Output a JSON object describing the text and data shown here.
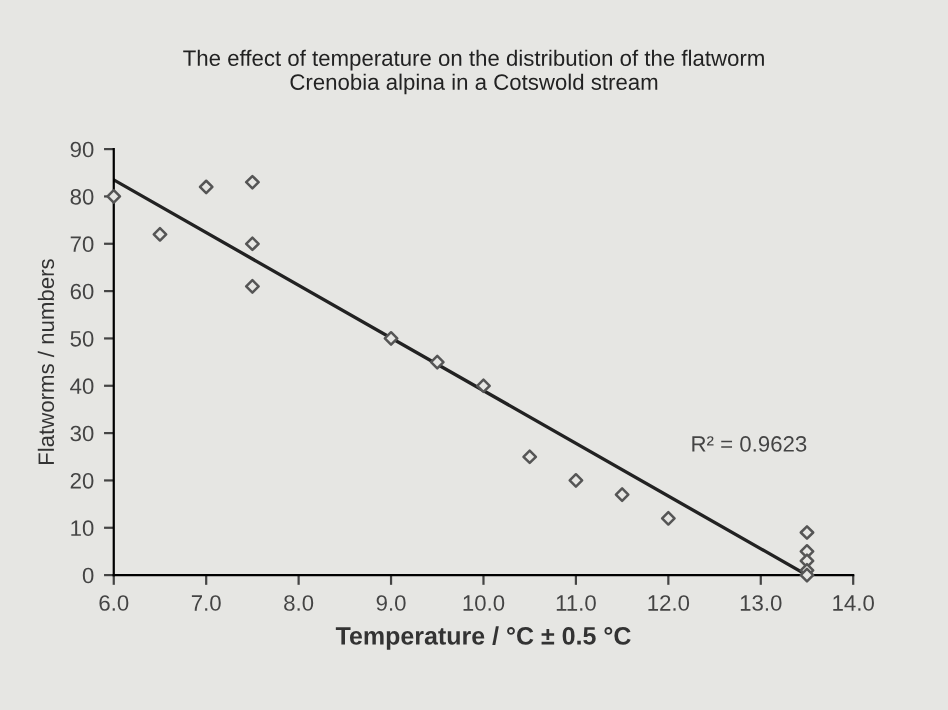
{
  "chart_data": {
    "type": "scatter",
    "title": "The effect of temperature on the distribution of the flatworm\nCrenobia alpina in a Cotswold stream",
    "xlabel": "Temperature / °C ± 0.5 °C",
    "ylabel": "Flatworms / numbers",
    "xlim": [
      6.0,
      14.0
    ],
    "xticks": [
      {
        "value": 6,
        "label": "6.0"
      },
      {
        "value": 7,
        "label": "7.0"
      },
      {
        "value": 8,
        "label": "8.0"
      },
      {
        "value": 9,
        "label": "9.0"
      },
      {
        "value": 10,
        "label": "10.0"
      },
      {
        "value": 11,
        "label": "11.0"
      },
      {
        "value": 12,
        "label": "12.0"
      },
      {
        "value": 13,
        "label": "13.0"
      },
      {
        "value": 14,
        "label": "14.0"
      }
    ],
    "ylim": [
      0,
      90
    ],
    "yticks": [
      0,
      10,
      20,
      30,
      40,
      50,
      60,
      70,
      80,
      90
    ],
    "grid": false,
    "legend": false,
    "series": [
      {
        "color": "#555555",
        "marker": "diamond",
        "x": [
          6.0,
          6.5,
          7.0,
          7.5,
          7.5,
          7.5,
          9.0,
          9.5,
          10.0,
          10.5,
          11.0,
          11.5,
          12.0,
          13.5,
          13.5,
          13.5,
          13.5,
          13.5
        ],
        "values": [
          80,
          72,
          82,
          83,
          70,
          61,
          50,
          45,
          40,
          25,
          20,
          17,
          12,
          9,
          5,
          3,
          1,
          0
        ]
      },
      {
        "type": "line",
        "color": "#222222",
        "marker": "none",
        "line_style": "solid",
        "x": [
          6.0,
          13.5
        ],
        "values": [
          83.5,
          0
        ]
      }
    ],
    "annotations": [
      "R² = 0.9623"
    ]
  }
}
